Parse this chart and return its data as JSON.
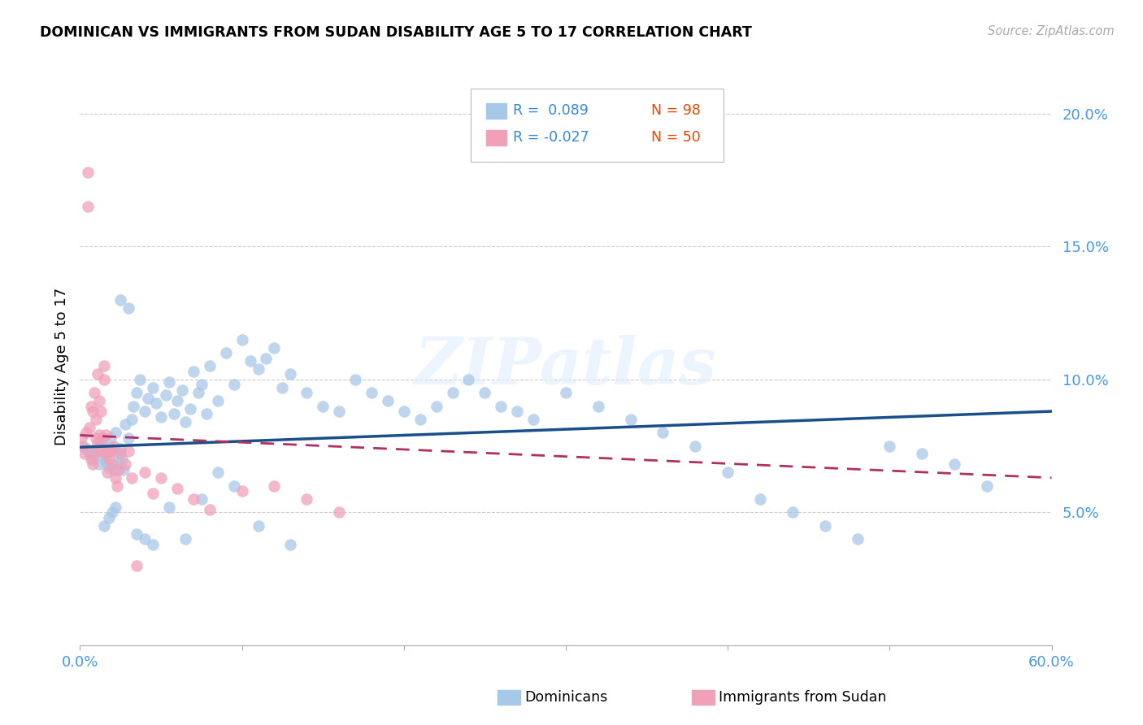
{
  "title": "DOMINICAN VS IMMIGRANTS FROM SUDAN DISABILITY AGE 5 TO 17 CORRELATION CHART",
  "source": "Source: ZipAtlas.com",
  "ylabel": "Disability Age 5 to 17",
  "xmin": 0.0,
  "xmax": 0.6,
  "ymin": 0.0,
  "ymax": 0.21,
  "yticks": [
    0.05,
    0.1,
    0.15,
    0.2
  ],
  "ytick_labels": [
    "5.0%",
    "10.0%",
    "15.0%",
    "20.0%"
  ],
  "xticks": [
    0.0,
    0.1,
    0.2,
    0.3,
    0.4,
    0.5,
    0.6
  ],
  "xtick_labels": [
    "0.0%",
    "",
    "",
    "",
    "",
    "",
    "60.0%"
  ],
  "dominicans_color": "#a8c8e8",
  "sudan_color": "#f0a0b8",
  "trend_dominicans_color": "#1a4f8a",
  "trend_sudan_color": "#b03060",
  "watermark": "ZIPatlas",
  "legend_r_dominicans": "R =  0.089",
  "legend_n_dominicans": "N = 98",
  "legend_r_sudan": "R = -0.027",
  "legend_n_sudan": "N = 50",
  "dominicans_x": [
    0.004,
    0.006,
    0.008,
    0.01,
    0.012,
    0.013,
    0.014,
    0.015,
    0.016,
    0.017,
    0.018,
    0.019,
    0.02,
    0.021,
    0.022,
    0.023,
    0.024,
    0.025,
    0.026,
    0.027,
    0.028,
    0.03,
    0.032,
    0.033,
    0.035,
    0.037,
    0.04,
    0.042,
    0.045,
    0.047,
    0.05,
    0.053,
    0.055,
    0.058,
    0.06,
    0.063,
    0.065,
    0.068,
    0.07,
    0.073,
    0.075,
    0.078,
    0.08,
    0.085,
    0.09,
    0.095,
    0.1,
    0.105,
    0.11,
    0.115,
    0.12,
    0.125,
    0.13,
    0.14,
    0.15,
    0.16,
    0.17,
    0.18,
    0.19,
    0.2,
    0.21,
    0.22,
    0.23,
    0.24,
    0.25,
    0.26,
    0.27,
    0.28,
    0.3,
    0.32,
    0.34,
    0.36,
    0.38,
    0.4,
    0.42,
    0.44,
    0.46,
    0.48,
    0.5,
    0.52,
    0.54,
    0.56,
    0.025,
    0.03,
    0.02,
    0.035,
    0.04,
    0.015,
    0.022,
    0.018,
    0.045,
    0.055,
    0.065,
    0.075,
    0.085,
    0.095,
    0.11,
    0.13
  ],
  "dominicans_y": [
    0.074,
    0.072,
    0.07,
    0.073,
    0.068,
    0.076,
    0.071,
    0.075,
    0.069,
    0.073,
    0.067,
    0.078,
    0.074,
    0.066,
    0.08,
    0.072,
    0.068,
    0.074,
    0.07,
    0.066,
    0.083,
    0.078,
    0.085,
    0.09,
    0.095,
    0.1,
    0.088,
    0.093,
    0.097,
    0.091,
    0.086,
    0.094,
    0.099,
    0.087,
    0.092,
    0.096,
    0.084,
    0.089,
    0.103,
    0.095,
    0.098,
    0.087,
    0.105,
    0.092,
    0.11,
    0.098,
    0.115,
    0.107,
    0.104,
    0.108,
    0.112,
    0.097,
    0.102,
    0.095,
    0.09,
    0.088,
    0.1,
    0.095,
    0.092,
    0.088,
    0.085,
    0.09,
    0.095,
    0.1,
    0.095,
    0.09,
    0.088,
    0.085,
    0.095,
    0.09,
    0.085,
    0.08,
    0.075,
    0.065,
    0.055,
    0.05,
    0.045,
    0.04,
    0.075,
    0.072,
    0.068,
    0.06,
    0.13,
    0.127,
    0.05,
    0.042,
    0.04,
    0.045,
    0.052,
    0.048,
    0.038,
    0.052,
    0.04,
    0.055,
    0.065,
    0.06,
    0.045,
    0.038
  ],
  "sudan_x": [
    0.001,
    0.002,
    0.003,
    0.004,
    0.005,
    0.005,
    0.006,
    0.007,
    0.007,
    0.008,
    0.008,
    0.009,
    0.009,
    0.01,
    0.01,
    0.011,
    0.011,
    0.012,
    0.012,
    0.013,
    0.013,
    0.014,
    0.015,
    0.015,
    0.016,
    0.016,
    0.017,
    0.017,
    0.018,
    0.019,
    0.02,
    0.021,
    0.022,
    0.023,
    0.024,
    0.025,
    0.028,
    0.03,
    0.032,
    0.035,
    0.04,
    0.045,
    0.05,
    0.06,
    0.07,
    0.08,
    0.1,
    0.12,
    0.14,
    0.16
  ],
  "sudan_y": [
    0.078,
    0.075,
    0.072,
    0.08,
    0.165,
    0.178,
    0.082,
    0.07,
    0.09,
    0.068,
    0.088,
    0.095,
    0.072,
    0.085,
    0.078,
    0.102,
    0.076,
    0.092,
    0.079,
    0.073,
    0.088,
    0.078,
    0.1,
    0.105,
    0.072,
    0.079,
    0.065,
    0.073,
    0.07,
    0.073,
    0.068,
    0.075,
    0.063,
    0.06,
    0.066,
    0.072,
    0.068,
    0.073,
    0.063,
    0.03,
    0.065,
    0.057,
    0.063,
    0.059,
    0.055,
    0.051,
    0.058,
    0.06,
    0.055,
    0.05
  ],
  "trend_dom_x0": 0.0,
  "trend_dom_x1": 0.6,
  "trend_dom_y0": 0.0745,
  "trend_dom_y1": 0.088,
  "trend_sud_x0": 0.0,
  "trend_sud_x1": 0.6,
  "trend_sud_y0": 0.079,
  "trend_sud_y1": 0.063
}
